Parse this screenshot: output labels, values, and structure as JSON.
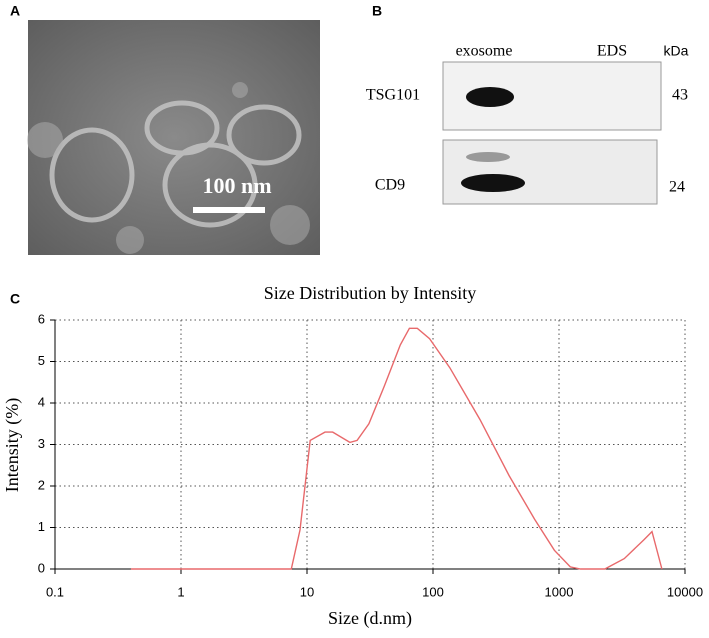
{
  "panels": {
    "a": {
      "label": "A",
      "scale_bar": "100 nm"
    },
    "b": {
      "label": "B",
      "lanes": [
        "exosome",
        "EDS"
      ],
      "unit": "kDa",
      "rows": [
        {
          "protein": "TSG101",
          "size": "43"
        },
        {
          "protein": "CD9",
          "size": "24"
        }
      ]
    }
  },
  "chart_data": {
    "type": "line",
    "panel_label": "C",
    "title": "Size Distribution by Intensity",
    "x_label": "Size (d.nm)",
    "y_label": "Intensity (%)",
    "x": [
      0.4,
      7.5,
      8.8,
      10.6,
      13.9,
      16,
      21.9,
      25,
      31,
      41,
      55,
      65,
      75,
      94,
      136,
      236,
      402,
      640,
      920,
      1230,
      1480,
      2310,
      3300,
      4700,
      5470,
      6560
    ],
    "values": [
      0,
      0,
      0.94,
      3.1,
      3.3,
      3.3,
      3.05,
      3.1,
      3.5,
      4.4,
      5.4,
      5.8,
      5.8,
      5.55,
      4.85,
      3.6,
      2.25,
      1.2,
      0.45,
      0.05,
      0,
      0,
      0.25,
      0.7,
      0.9,
      0
    ],
    "color": "#e8696b",
    "xscale": "log",
    "xlim": [
      0.1,
      10000
    ],
    "xticks": [
      0.1,
      1,
      10,
      100,
      1000,
      10000
    ],
    "ylim": [
      0,
      6
    ],
    "yticks": [
      0,
      1,
      2,
      3,
      4,
      5,
      6
    ],
    "grid": true
  }
}
